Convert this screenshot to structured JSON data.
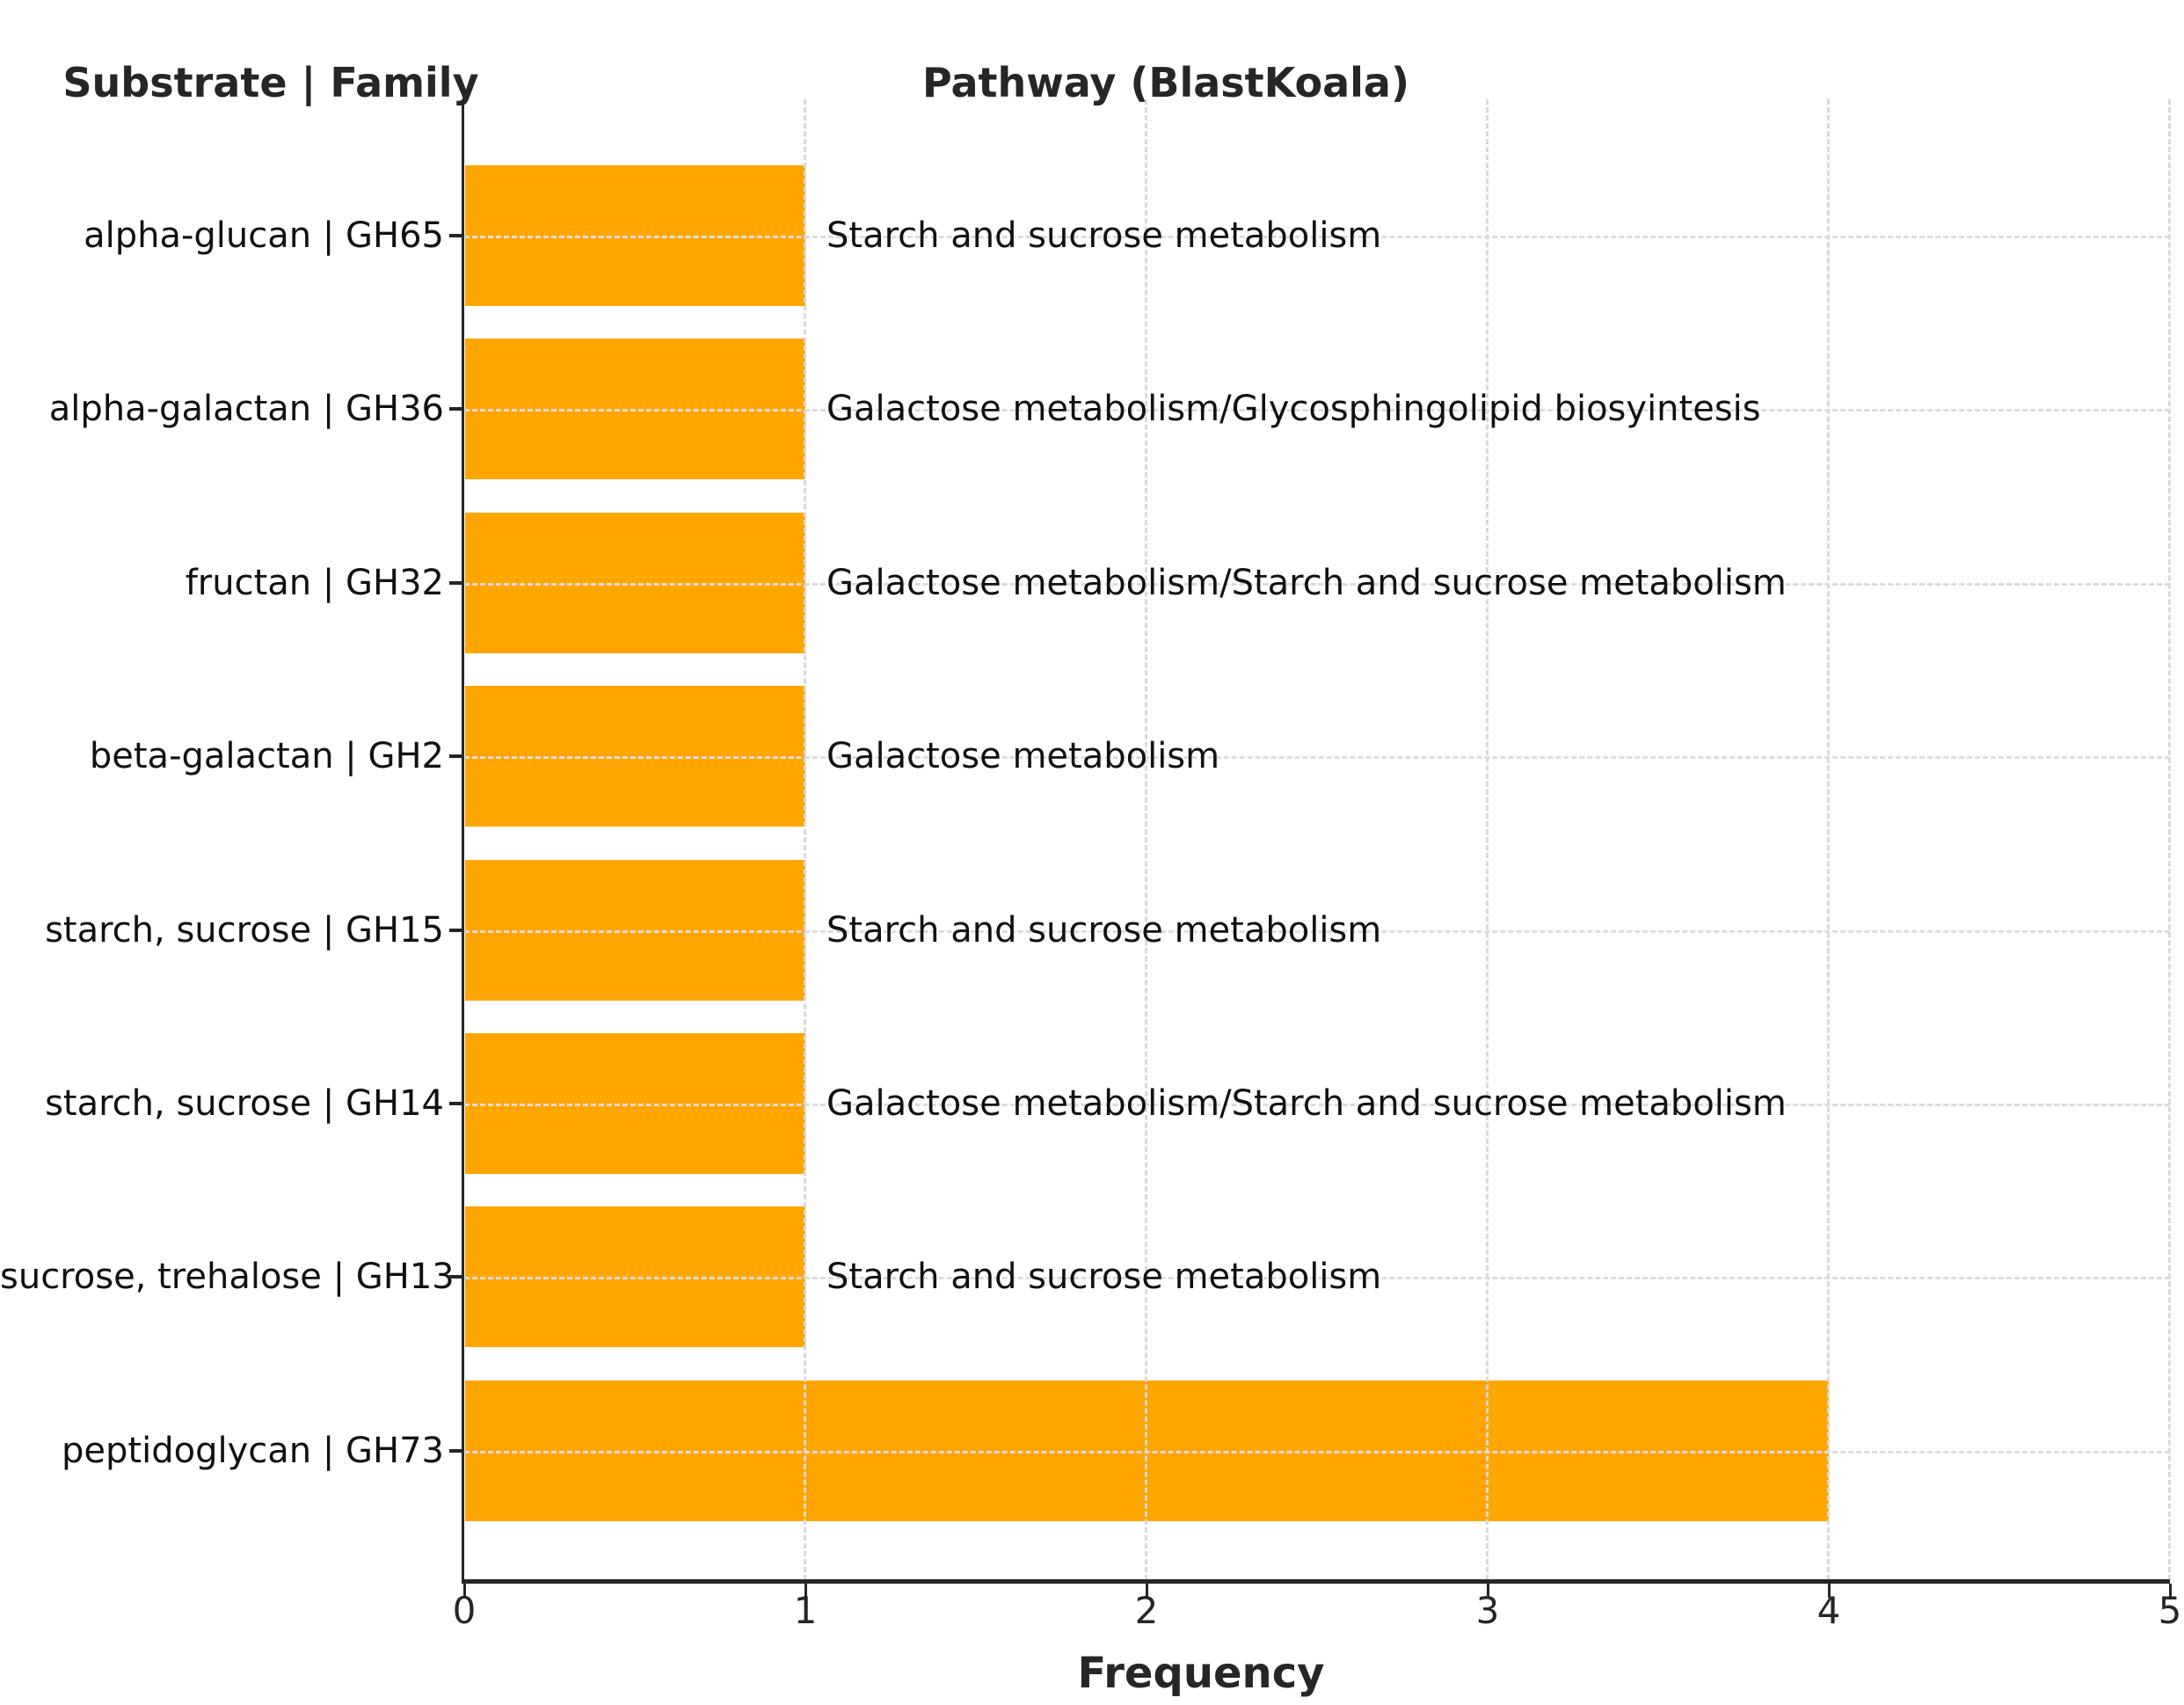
{
  "headers": {
    "left": "Substrate | Family",
    "center": "Pathway (BlastKoala)"
  },
  "chart_data": {
    "type": "bar",
    "orientation": "horizontal",
    "title": "Pathway (BlastKoala)",
    "categories_header": "Substrate | Family",
    "xlabel": "Frequency",
    "xlim": [
      0,
      5
    ],
    "x_ticks": [
      "0",
      "1",
      "2",
      "3",
      "4",
      "5"
    ],
    "grid": true,
    "legend": false,
    "bar_color": "#FFA500",
    "categories": [
      "alpha-glucan | GH65",
      "alpha-galactan | GH36",
      "fructan | GH32",
      "beta-galactan | GH2",
      "starch, sucrose | GH15",
      "starch, sucrose | GH14",
      "sucrose, trehalose | GH13",
      "peptidoglycan | GH73"
    ],
    "values": [
      1,
      1,
      1,
      1,
      1,
      1,
      1,
      4
    ],
    "annotations": [
      "Starch and sucrose metabolism",
      "Galactose metabolism/Glycosphingolipid biosyintesis",
      "Galactose metabolism/Starch and sucrose metabolism",
      "Galactose metabolism",
      "Starch and sucrose metabolism",
      "Galactose metabolism/Starch and sucrose metabolism",
      "Starch and sucrose metabolism",
      ""
    ]
  }
}
